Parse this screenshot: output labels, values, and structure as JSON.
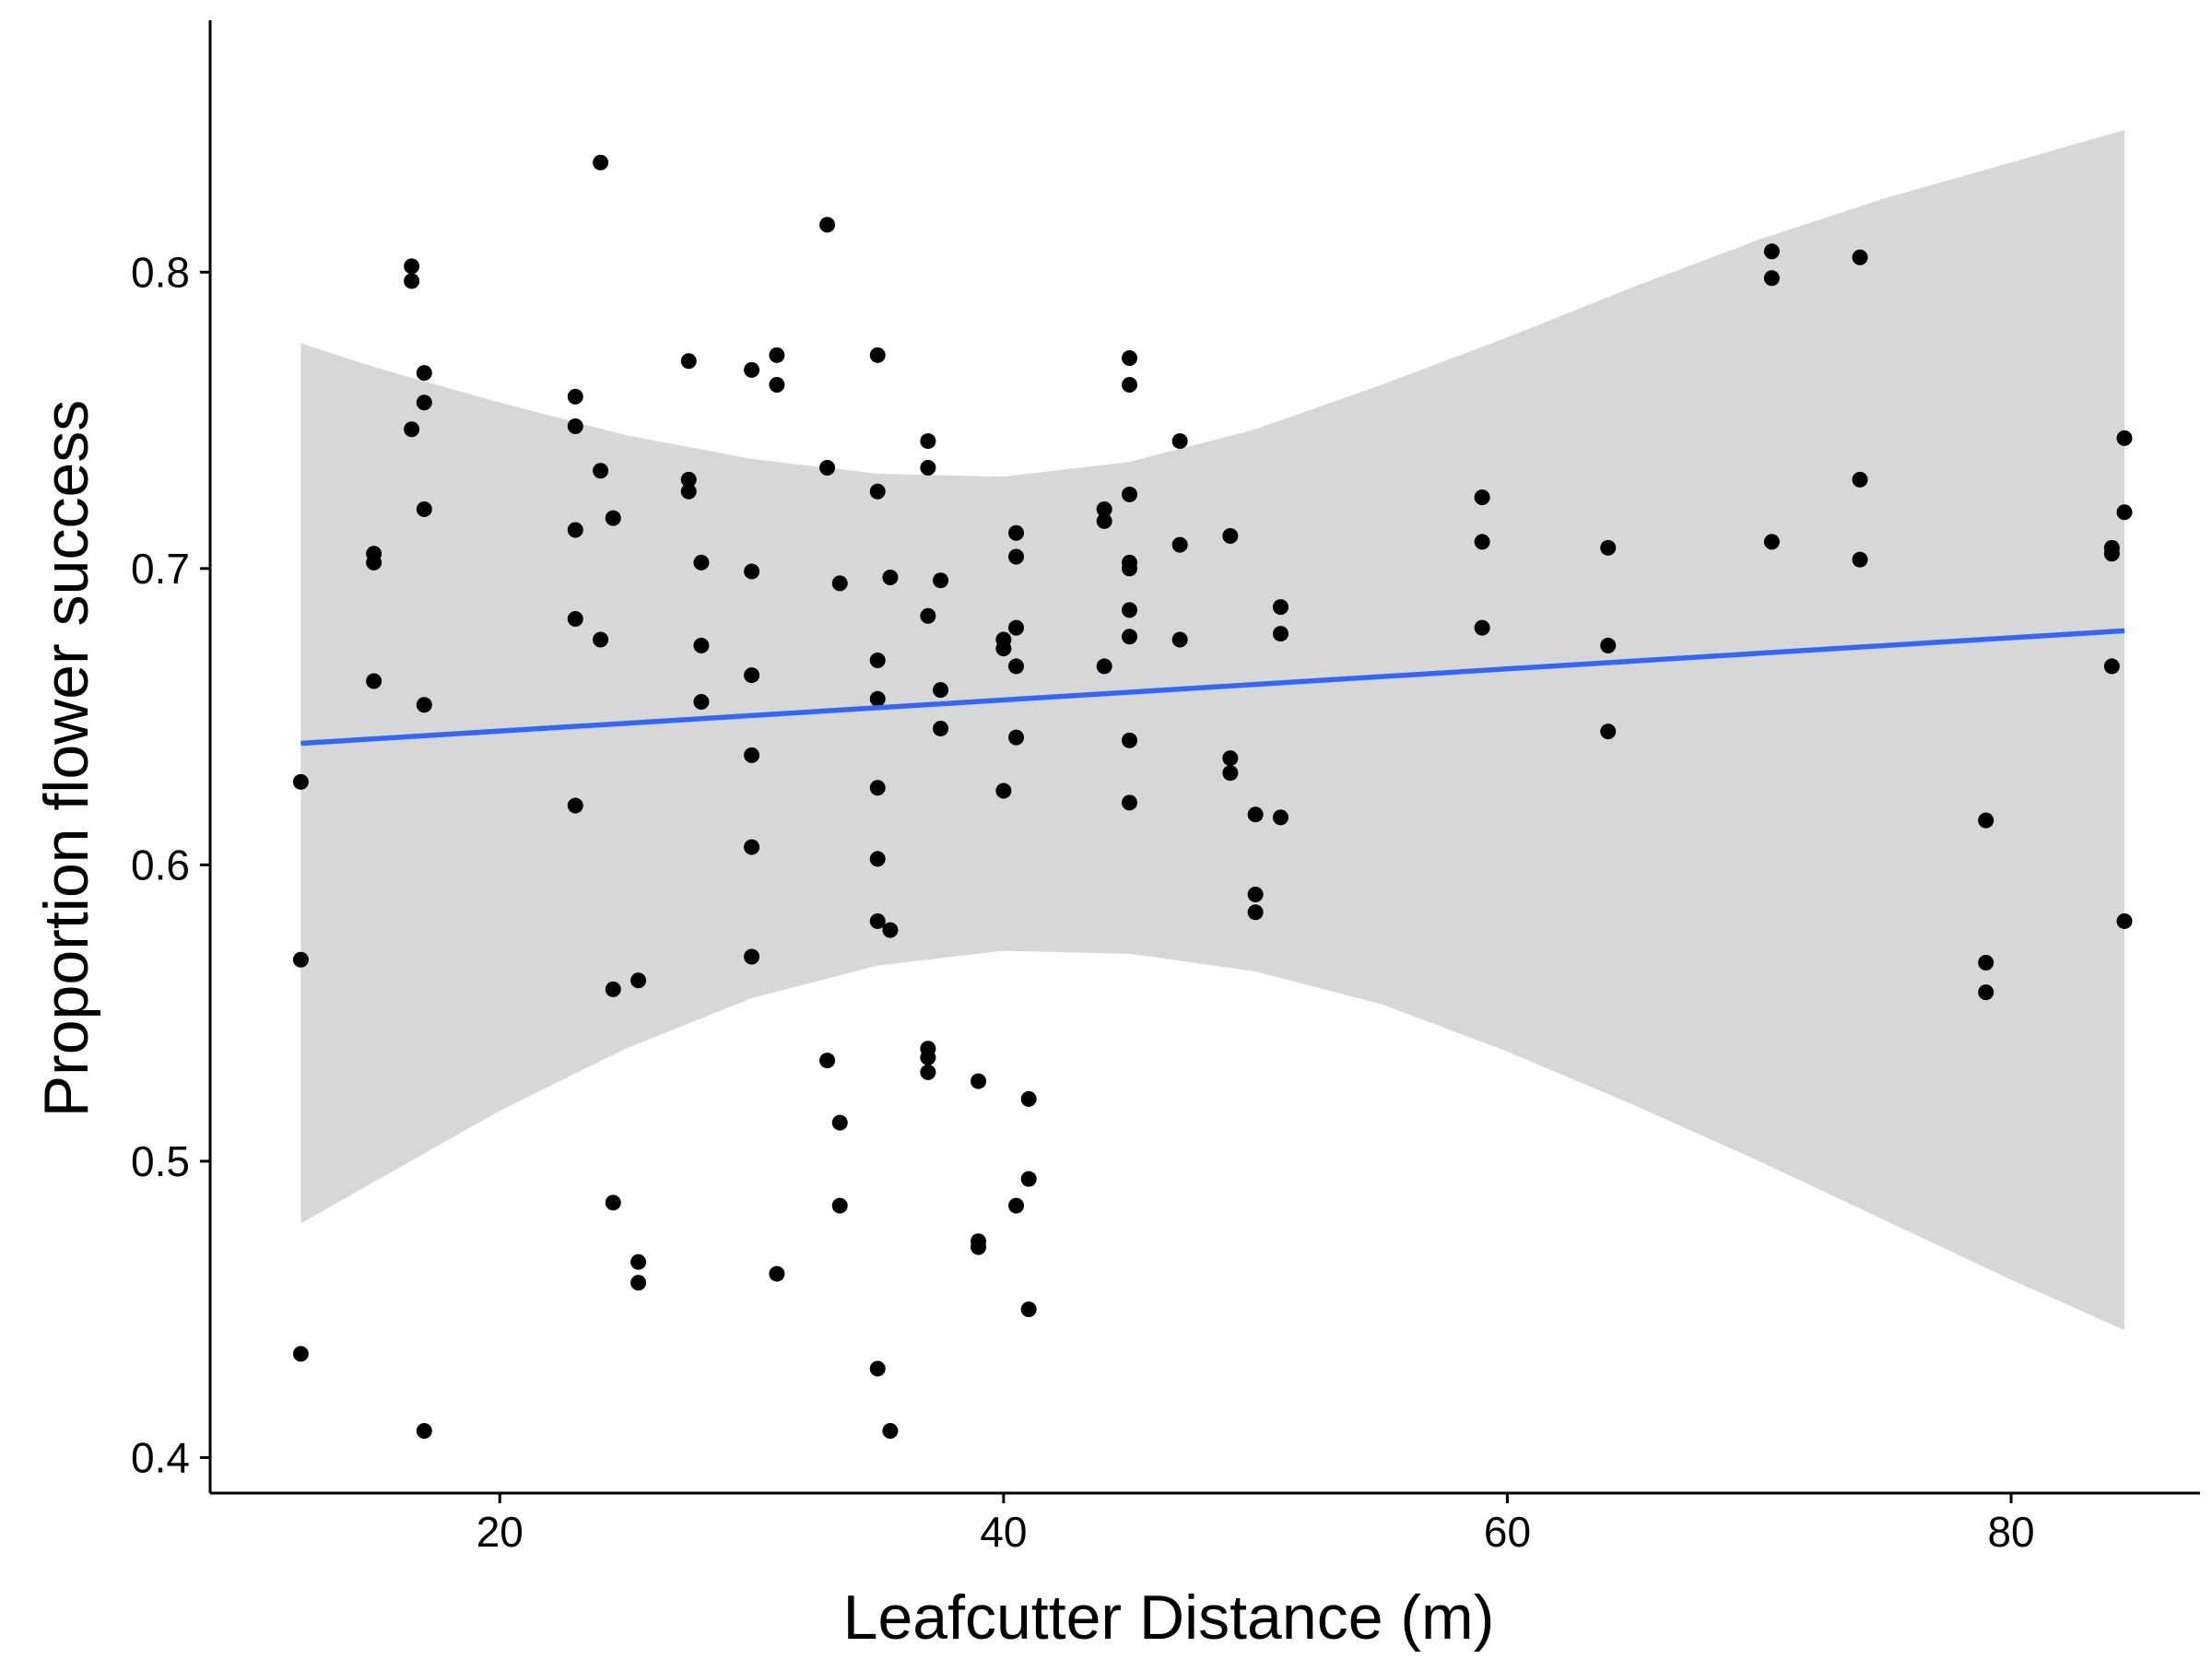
{
  "chart_data": {
    "type": "scatter",
    "title": "",
    "xlabel": "Leafcutter Distance (m)",
    "ylabel": "Proportion flower success",
    "xlim": [
      8.5,
      87.5
    ],
    "ylim": [
      0.388,
      0.885
    ],
    "xticks": [
      20,
      40,
      60,
      80
    ],
    "yticks": [
      0.4,
      0.5,
      0.6,
      0.7,
      0.8
    ],
    "xtick_labels": [
      "20",
      "40",
      "60",
      "80"
    ],
    "ytick_labels": [
      "0.4",
      "0.5",
      "0.6",
      "0.7",
      "0.8"
    ],
    "grid": false,
    "legend": "none",
    "point_color": "#000000",
    "band_color": "#d3d3d3",
    "fit_color": "#3366ff",
    "points": [
      {
        "x": 12.1,
        "y": 0.628
      },
      {
        "x": 12.1,
        "y": 0.568
      },
      {
        "x": 12.1,
        "y": 0.435
      },
      {
        "x": 15.0,
        "y": 0.705
      },
      {
        "x": 15.0,
        "y": 0.702
      },
      {
        "x": 15.0,
        "y": 0.662
      },
      {
        "x": 16.5,
        "y": 0.802
      },
      {
        "x": 16.5,
        "y": 0.797
      },
      {
        "x": 16.5,
        "y": 0.747
      },
      {
        "x": 17.0,
        "y": 0.766
      },
      {
        "x": 17.0,
        "y": 0.756
      },
      {
        "x": 17.0,
        "y": 0.72
      },
      {
        "x": 17.0,
        "y": 0.654
      },
      {
        "x": 17.0,
        "y": 0.409
      },
      {
        "x": 23.0,
        "y": 0.758
      },
      {
        "x": 23.0,
        "y": 0.748
      },
      {
        "x": 23.0,
        "y": 0.713
      },
      {
        "x": 23.0,
        "y": 0.683
      },
      {
        "x": 23.0,
        "y": 0.62
      },
      {
        "x": 24.0,
        "y": 0.837
      },
      {
        "x": 24.0,
        "y": 0.733
      },
      {
        "x": 24.0,
        "y": 0.676
      },
      {
        "x": 24.5,
        "y": 0.717
      },
      {
        "x": 24.5,
        "y": 0.558
      },
      {
        "x": 24.5,
        "y": 0.486
      },
      {
        "x": 25.5,
        "y": 0.561
      },
      {
        "x": 25.5,
        "y": 0.466
      },
      {
        "x": 25.5,
        "y": 0.459
      },
      {
        "x": 27.5,
        "y": 0.77
      },
      {
        "x": 27.5,
        "y": 0.73
      },
      {
        "x": 27.5,
        "y": 0.726
      },
      {
        "x": 28.0,
        "y": 0.702
      },
      {
        "x": 28.0,
        "y": 0.674
      },
      {
        "x": 28.0,
        "y": 0.655
      },
      {
        "x": 30.0,
        "y": 0.767
      },
      {
        "x": 30.0,
        "y": 0.699
      },
      {
        "x": 30.0,
        "y": 0.664
      },
      {
        "x": 30.0,
        "y": 0.637
      },
      {
        "x": 30.0,
        "y": 0.606
      },
      {
        "x": 30.0,
        "y": 0.569
      },
      {
        "x": 31.0,
        "y": 0.772
      },
      {
        "x": 31.0,
        "y": 0.762
      },
      {
        "x": 31.0,
        "y": 0.462
      },
      {
        "x": 33.0,
        "y": 0.816
      },
      {
        "x": 33.0,
        "y": 0.734
      },
      {
        "x": 33.0,
        "y": 0.534
      },
      {
        "x": 33.5,
        "y": 0.695
      },
      {
        "x": 33.5,
        "y": 0.513
      },
      {
        "x": 33.5,
        "y": 0.485
      },
      {
        "x": 35.0,
        "y": 0.772
      },
      {
        "x": 35.0,
        "y": 0.726
      },
      {
        "x": 35.0,
        "y": 0.669
      },
      {
        "x": 35.0,
        "y": 0.656
      },
      {
        "x": 35.0,
        "y": 0.626
      },
      {
        "x": 35.0,
        "y": 0.602
      },
      {
        "x": 35.0,
        "y": 0.581
      },
      {
        "x": 35.0,
        "y": 0.43
      },
      {
        "x": 35.5,
        "y": 0.697
      },
      {
        "x": 35.5,
        "y": 0.578
      },
      {
        "x": 35.5,
        "y": 0.409
      },
      {
        "x": 37.0,
        "y": 0.743
      },
      {
        "x": 37.0,
        "y": 0.734
      },
      {
        "x": 37.0,
        "y": 0.684
      },
      {
        "x": 37.0,
        "y": 0.538
      },
      {
        "x": 37.0,
        "y": 0.535
      },
      {
        "x": 37.0,
        "y": 0.53
      },
      {
        "x": 37.5,
        "y": 0.696
      },
      {
        "x": 37.5,
        "y": 0.659
      },
      {
        "x": 37.5,
        "y": 0.646
      },
      {
        "x": 39.0,
        "y": 0.527
      },
      {
        "x": 39.0,
        "y": 0.473
      },
      {
        "x": 39.0,
        "y": 0.471
      },
      {
        "x": 40.0,
        "y": 0.676
      },
      {
        "x": 40.0,
        "y": 0.673
      },
      {
        "x": 40.0,
        "y": 0.625
      },
      {
        "x": 40.5,
        "y": 0.712
      },
      {
        "x": 40.5,
        "y": 0.704
      },
      {
        "x": 40.5,
        "y": 0.68
      },
      {
        "x": 40.5,
        "y": 0.667
      },
      {
        "x": 40.5,
        "y": 0.643
      },
      {
        "x": 40.5,
        "y": 0.485
      },
      {
        "x": 41.0,
        "y": 0.521
      },
      {
        "x": 41.0,
        "y": 0.494
      },
      {
        "x": 41.0,
        "y": 0.45
      },
      {
        "x": 44.0,
        "y": 0.72
      },
      {
        "x": 44.0,
        "y": 0.716
      },
      {
        "x": 44.0,
        "y": 0.667
      },
      {
        "x": 45.0,
        "y": 0.771
      },
      {
        "x": 45.0,
        "y": 0.762
      },
      {
        "x": 45.0,
        "y": 0.725
      },
      {
        "x": 45.0,
        "y": 0.702
      },
      {
        "x": 45.0,
        "y": 0.7
      },
      {
        "x": 45.0,
        "y": 0.686
      },
      {
        "x": 45.0,
        "y": 0.677
      },
      {
        "x": 45.0,
        "y": 0.642
      },
      {
        "x": 45.0,
        "y": 0.621
      },
      {
        "x": 47.0,
        "y": 0.743
      },
      {
        "x": 47.0,
        "y": 0.708
      },
      {
        "x": 47.0,
        "y": 0.676
      },
      {
        "x": 49.0,
        "y": 0.711
      },
      {
        "x": 49.0,
        "y": 0.636
      },
      {
        "x": 49.0,
        "y": 0.631
      },
      {
        "x": 50.0,
        "y": 0.617
      },
      {
        "x": 50.0,
        "y": 0.59
      },
      {
        "x": 50.0,
        "y": 0.584
      },
      {
        "x": 51.0,
        "y": 0.687
      },
      {
        "x": 51.0,
        "y": 0.678
      },
      {
        "x": 51.0,
        "y": 0.616
      },
      {
        "x": 59.0,
        "y": 0.724
      },
      {
        "x": 59.0,
        "y": 0.709
      },
      {
        "x": 59.0,
        "y": 0.68
      },
      {
        "x": 64.0,
        "y": 0.707
      },
      {
        "x": 64.0,
        "y": 0.674
      },
      {
        "x": 64.0,
        "y": 0.645
      },
      {
        "x": 70.5,
        "y": 0.807
      },
      {
        "x": 70.5,
        "y": 0.798
      },
      {
        "x": 70.5,
        "y": 0.709
      },
      {
        "x": 74.0,
        "y": 0.805
      },
      {
        "x": 74.0,
        "y": 0.73
      },
      {
        "x": 74.0,
        "y": 0.703
      },
      {
        "x": 79.0,
        "y": 0.615
      },
      {
        "x": 79.0,
        "y": 0.567
      },
      {
        "x": 79.0,
        "y": 0.557
      },
      {
        "x": 84.0,
        "y": 0.707
      },
      {
        "x": 84.0,
        "y": 0.705
      },
      {
        "x": 84.0,
        "y": 0.667
      },
      {
        "x": 84.5,
        "y": 0.744
      },
      {
        "x": 84.5,
        "y": 0.719
      },
      {
        "x": 84.5,
        "y": 0.581
      }
    ],
    "fit_line": [
      {
        "x": 12.1,
        "y": 0.641
      },
      {
        "x": 84.5,
        "y": 0.679
      }
    ],
    "confidence_band": [
      {
        "x": 12.1,
        "lower": 0.479,
        "upper": 0.776
      },
      {
        "x": 15.0,
        "lower": 0.493,
        "upper": 0.768
      },
      {
        "x": 20.0,
        "lower": 0.517,
        "upper": 0.756
      },
      {
        "x": 25.0,
        "lower": 0.538,
        "upper": 0.745
      },
      {
        "x": 30.0,
        "lower": 0.555,
        "upper": 0.737
      },
      {
        "x": 35.0,
        "lower": 0.566,
        "upper": 0.732
      },
      {
        "x": 40.0,
        "lower": 0.571,
        "upper": 0.731
      },
      {
        "x": 45.0,
        "lower": 0.57,
        "upper": 0.736
      },
      {
        "x": 50.0,
        "lower": 0.564,
        "upper": 0.747
      },
      {
        "x": 55.0,
        "lower": 0.553,
        "upper": 0.762
      },
      {
        "x": 60.0,
        "lower": 0.537,
        "upper": 0.778
      },
      {
        "x": 65.0,
        "lower": 0.519,
        "upper": 0.795
      },
      {
        "x": 70.0,
        "lower": 0.5,
        "upper": 0.811
      },
      {
        "x": 75.0,
        "lower": 0.48,
        "upper": 0.825
      },
      {
        "x": 80.0,
        "lower": 0.46,
        "upper": 0.837
      },
      {
        "x": 84.5,
        "lower": 0.443,
        "upper": 0.848
      }
    ]
  }
}
